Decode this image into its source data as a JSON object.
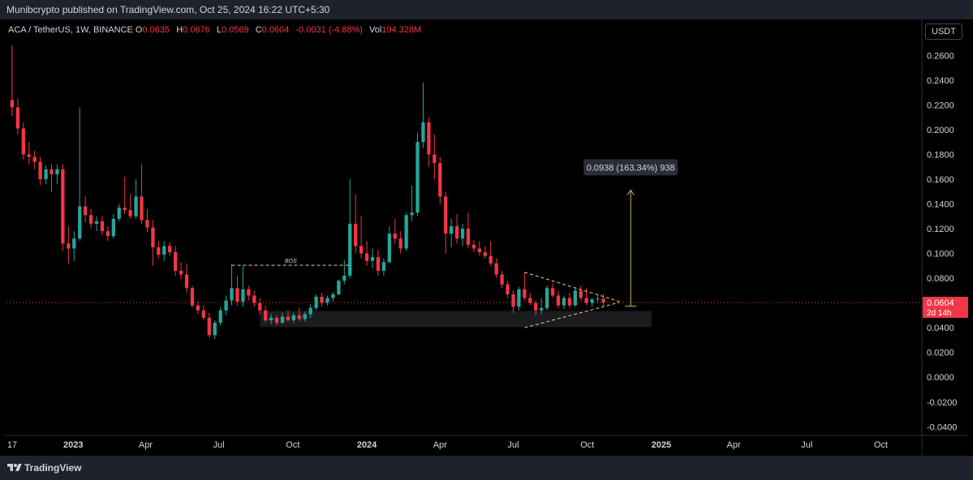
{
  "publisher": "Munibcrypto published on TradingView.com, Oct 25, 2024 16:22 UTC+5:30",
  "footer": {
    "brand": "TradingView",
    "logo_icon": "tradingview-logo-icon"
  },
  "currency_button": "USDT",
  "legend": {
    "symbol": "ACA / TetherUS, 1W, BINANCE",
    "open_label": "O",
    "open": "0.0635",
    "high_label": "H",
    "high": "0.0676",
    "low_label": "L",
    "low": "0.0569",
    "close_label": "C",
    "close": "0.0604",
    "change": "-0.0031 (-4.88%)",
    "vol_label": "Vol",
    "vol": "194.328M"
  },
  "colors": {
    "up": "#26a69a",
    "down": "#f23645",
    "accent_yellow": "#e8d36a",
    "background": "#000000"
  },
  "chart_data": {
    "type": "candlestick",
    "interval": "1W",
    "y_axis": {
      "ticks": [
        "0.2600",
        "0.2400",
        "0.2200",
        "0.2000",
        "0.1800",
        "0.1600",
        "0.1400",
        "0.1200",
        "0.1000",
        "0.0800",
        "0.0600",
        "0.0400",
        "0.0200",
        "0.0000",
        "-0.0200",
        "-0.0400"
      ],
      "range": [
        -0.047,
        0.272
      ]
    },
    "x_axis": {
      "ticks": [
        {
          "label": "17",
          "date": "2022-10-17"
        },
        {
          "label": "2023",
          "date": "2023-01-01"
        },
        {
          "label": "Apr",
          "date": "2023-04-01"
        },
        {
          "label": "Jul",
          "date": "2023-07-01"
        },
        {
          "label": "Oct",
          "date": "2023-10-01"
        },
        {
          "label": "2024",
          "date": "2024-01-01"
        },
        {
          "label": "Apr",
          "date": "2024-04-01"
        },
        {
          "label": "Jul",
          "date": "2024-07-01"
        },
        {
          "label": "Oct",
          "date": "2024-10-01"
        },
        {
          "label": "2025",
          "date": "2025-01-01"
        },
        {
          "label": "Apr",
          "date": "2025-04-01"
        },
        {
          "label": "Jul",
          "date": "2025-07-01"
        },
        {
          "label": "Oct",
          "date": "2025-10-01"
        }
      ],
      "range": [
        "2022-10-10",
        "2025-11-20"
      ]
    },
    "candles": [
      {
        "date": "2022-10-17",
        "o": 0.224,
        "h": 0.268,
        "l": 0.211,
        "c": 0.218
      },
      {
        "date": "2022-10-24",
        "o": 0.218,
        "h": 0.225,
        "l": 0.196,
        "c": 0.201
      },
      {
        "date": "2022-10-31",
        "o": 0.201,
        "h": 0.206,
        "l": 0.176,
        "c": 0.18
      },
      {
        "date": "2022-11-07",
        "o": 0.18,
        "h": 0.19,
        "l": 0.172,
        "c": 0.178
      },
      {
        "date": "2022-11-14",
        "o": 0.178,
        "h": 0.183,
        "l": 0.168,
        "c": 0.174
      },
      {
        "date": "2022-11-21",
        "o": 0.174,
        "h": 0.178,
        "l": 0.155,
        "c": 0.16
      },
      {
        "date": "2022-11-28",
        "o": 0.16,
        "h": 0.171,
        "l": 0.156,
        "c": 0.168
      },
      {
        "date": "2022-12-05",
        "o": 0.168,
        "h": 0.172,
        "l": 0.15,
        "c": 0.164
      },
      {
        "date": "2022-12-12",
        "o": 0.164,
        "h": 0.172,
        "l": 0.156,
        "c": 0.168
      },
      {
        "date": "2022-12-19",
        "o": 0.168,
        "h": 0.172,
        "l": 0.102,
        "c": 0.108
      },
      {
        "date": "2022-12-26",
        "o": 0.108,
        "h": 0.122,
        "l": 0.092,
        "c": 0.104
      },
      {
        "date": "2023-01-02",
        "o": 0.104,
        "h": 0.118,
        "l": 0.094,
        "c": 0.112
      },
      {
        "date": "2023-01-09",
        "o": 0.112,
        "h": 0.218,
        "l": 0.11,
        "c": 0.138
      },
      {
        "date": "2023-01-16",
        "o": 0.138,
        "h": 0.146,
        "l": 0.125,
        "c": 0.131
      },
      {
        "date": "2023-01-23",
        "o": 0.131,
        "h": 0.136,
        "l": 0.12,
        "c": 0.124
      },
      {
        "date": "2023-01-30",
        "o": 0.124,
        "h": 0.13,
        "l": 0.118,
        "c": 0.126
      },
      {
        "date": "2023-02-06",
        "o": 0.126,
        "h": 0.13,
        "l": 0.115,
        "c": 0.118
      },
      {
        "date": "2023-02-13",
        "o": 0.118,
        "h": 0.122,
        "l": 0.11,
        "c": 0.114
      },
      {
        "date": "2023-02-20",
        "o": 0.114,
        "h": 0.132,
        "l": 0.112,
        "c": 0.128
      },
      {
        "date": "2023-02-27",
        "o": 0.128,
        "h": 0.14,
        "l": 0.126,
        "c": 0.137
      },
      {
        "date": "2023-03-06",
        "o": 0.137,
        "h": 0.162,
        "l": 0.132,
        "c": 0.135
      },
      {
        "date": "2023-03-13",
        "o": 0.135,
        "h": 0.148,
        "l": 0.128,
        "c": 0.13
      },
      {
        "date": "2023-03-20",
        "o": 0.13,
        "h": 0.16,
        "l": 0.128,
        "c": 0.146
      },
      {
        "date": "2023-03-27",
        "o": 0.146,
        "h": 0.172,
        "l": 0.124,
        "c": 0.127
      },
      {
        "date": "2023-04-03",
        "o": 0.127,
        "h": 0.136,
        "l": 0.117,
        "c": 0.121
      },
      {
        "date": "2023-04-10",
        "o": 0.121,
        "h": 0.127,
        "l": 0.09,
        "c": 0.105
      },
      {
        "date": "2023-04-17",
        "o": 0.105,
        "h": 0.11,
        "l": 0.096,
        "c": 0.099
      },
      {
        "date": "2023-04-24",
        "o": 0.099,
        "h": 0.11,
        "l": 0.094,
        "c": 0.106
      },
      {
        "date": "2023-05-01",
        "o": 0.106,
        "h": 0.109,
        "l": 0.098,
        "c": 0.101
      },
      {
        "date": "2023-05-08",
        "o": 0.101,
        "h": 0.106,
        "l": 0.082,
        "c": 0.086
      },
      {
        "date": "2023-05-15",
        "o": 0.086,
        "h": 0.093,
        "l": 0.079,
        "c": 0.083
      },
      {
        "date": "2023-05-22",
        "o": 0.083,
        "h": 0.092,
        "l": 0.068,
        "c": 0.072
      },
      {
        "date": "2023-05-29",
        "o": 0.072,
        "h": 0.074,
        "l": 0.056,
        "c": 0.058
      },
      {
        "date": "2023-06-05",
        "o": 0.058,
        "h": 0.061,
        "l": 0.051,
        "c": 0.054
      },
      {
        "date": "2023-06-12",
        "o": 0.054,
        "h": 0.058,
        "l": 0.046,
        "c": 0.048
      },
      {
        "date": "2023-06-19",
        "o": 0.048,
        "h": 0.052,
        "l": 0.032,
        "c": 0.034
      },
      {
        "date": "2023-06-26",
        "o": 0.034,
        "h": 0.046,
        "l": 0.031,
        "c": 0.044
      },
      {
        "date": "2023-07-03",
        "o": 0.044,
        "h": 0.057,
        "l": 0.042,
        "c": 0.054
      },
      {
        "date": "2023-07-10",
        "o": 0.054,
        "h": 0.066,
        "l": 0.05,
        "c": 0.062
      },
      {
        "date": "2023-07-17",
        "o": 0.062,
        "h": 0.091,
        "l": 0.058,
        "c": 0.072
      },
      {
        "date": "2023-07-24",
        "o": 0.072,
        "h": 0.082,
        "l": 0.058,
        "c": 0.061
      },
      {
        "date": "2023-07-31",
        "o": 0.061,
        "h": 0.09,
        "l": 0.057,
        "c": 0.071
      },
      {
        "date": "2023-08-07",
        "o": 0.071,
        "h": 0.074,
        "l": 0.062,
        "c": 0.066
      },
      {
        "date": "2023-08-14",
        "o": 0.066,
        "h": 0.07,
        "l": 0.057,
        "c": 0.06
      },
      {
        "date": "2023-08-21",
        "o": 0.06,
        "h": 0.064,
        "l": 0.051,
        "c": 0.054
      },
      {
        "date": "2023-08-28",
        "o": 0.054,
        "h": 0.058,
        "l": 0.044,
        "c": 0.046
      },
      {
        "date": "2023-09-04",
        "o": 0.046,
        "h": 0.051,
        "l": 0.043,
        "c": 0.048
      },
      {
        "date": "2023-09-11",
        "o": 0.048,
        "h": 0.05,
        "l": 0.042,
        "c": 0.044
      },
      {
        "date": "2023-09-18",
        "o": 0.044,
        "h": 0.052,
        "l": 0.043,
        "c": 0.049
      },
      {
        "date": "2023-09-25",
        "o": 0.049,
        "h": 0.054,
        "l": 0.045,
        "c": 0.046
      },
      {
        "date": "2023-10-02",
        "o": 0.046,
        "h": 0.052,
        "l": 0.044,
        "c": 0.05
      },
      {
        "date": "2023-10-09",
        "o": 0.05,
        "h": 0.056,
        "l": 0.045,
        "c": 0.047
      },
      {
        "date": "2023-10-16",
        "o": 0.047,
        "h": 0.053,
        "l": 0.045,
        "c": 0.051
      },
      {
        "date": "2023-10-23",
        "o": 0.051,
        "h": 0.059,
        "l": 0.048,
        "c": 0.056
      },
      {
        "date": "2023-10-30",
        "o": 0.056,
        "h": 0.067,
        "l": 0.054,
        "c": 0.065
      },
      {
        "date": "2023-11-06",
        "o": 0.065,
        "h": 0.068,
        "l": 0.057,
        "c": 0.06
      },
      {
        "date": "2023-11-13",
        "o": 0.06,
        "h": 0.066,
        "l": 0.058,
        "c": 0.064
      },
      {
        "date": "2023-11-20",
        "o": 0.064,
        "h": 0.069,
        "l": 0.061,
        "c": 0.067
      },
      {
        "date": "2023-11-27",
        "o": 0.067,
        "h": 0.079,
        "l": 0.066,
        "c": 0.078
      },
      {
        "date": "2023-12-04",
        "o": 0.078,
        "h": 0.095,
        "l": 0.075,
        "c": 0.082
      },
      {
        "date": "2023-12-11",
        "o": 0.082,
        "h": 0.16,
        "l": 0.08,
        "c": 0.124
      },
      {
        "date": "2023-12-18",
        "o": 0.124,
        "h": 0.148,
        "l": 0.1,
        "c": 0.106
      },
      {
        "date": "2023-12-25",
        "o": 0.106,
        "h": 0.13,
        "l": 0.096,
        "c": 0.1
      },
      {
        "date": "2024-01-01",
        "o": 0.1,
        "h": 0.11,
        "l": 0.09,
        "c": 0.094
      },
      {
        "date": "2024-01-08",
        "o": 0.094,
        "h": 0.104,
        "l": 0.088,
        "c": 0.097
      },
      {
        "date": "2024-01-15",
        "o": 0.097,
        "h": 0.103,
        "l": 0.082,
        "c": 0.086
      },
      {
        "date": "2024-01-22",
        "o": 0.086,
        "h": 0.096,
        "l": 0.082,
        "c": 0.093
      },
      {
        "date": "2024-01-29",
        "o": 0.093,
        "h": 0.122,
        "l": 0.092,
        "c": 0.116
      },
      {
        "date": "2024-02-05",
        "o": 0.116,
        "h": 0.128,
        "l": 0.108,
        "c": 0.112
      },
      {
        "date": "2024-02-12",
        "o": 0.112,
        "h": 0.118,
        "l": 0.1,
        "c": 0.104
      },
      {
        "date": "2024-02-19",
        "o": 0.104,
        "h": 0.133,
        "l": 0.102,
        "c": 0.131
      },
      {
        "date": "2024-02-26",
        "o": 0.131,
        "h": 0.155,
        "l": 0.126,
        "c": 0.133
      },
      {
        "date": "2024-03-04",
        "o": 0.133,
        "h": 0.197,
        "l": 0.13,
        "c": 0.19
      },
      {
        "date": "2024-03-11",
        "o": 0.19,
        "h": 0.238,
        "l": 0.185,
        "c": 0.206
      },
      {
        "date": "2024-03-18",
        "o": 0.206,
        "h": 0.21,
        "l": 0.17,
        "c": 0.18
      },
      {
        "date": "2024-03-25",
        "o": 0.18,
        "h": 0.196,
        "l": 0.16,
        "c": 0.173
      },
      {
        "date": "2024-04-01",
        "o": 0.173,
        "h": 0.178,
        "l": 0.14,
        "c": 0.146
      },
      {
        "date": "2024-04-08",
        "o": 0.146,
        "h": 0.15,
        "l": 0.1,
        "c": 0.116
      },
      {
        "date": "2024-04-15",
        "o": 0.116,
        "h": 0.128,
        "l": 0.105,
        "c": 0.122
      },
      {
        "date": "2024-04-22",
        "o": 0.122,
        "h": 0.132,
        "l": 0.108,
        "c": 0.112
      },
      {
        "date": "2024-04-29",
        "o": 0.112,
        "h": 0.124,
        "l": 0.106,
        "c": 0.12
      },
      {
        "date": "2024-05-06",
        "o": 0.12,
        "h": 0.133,
        "l": 0.104,
        "c": 0.107
      },
      {
        "date": "2024-05-13",
        "o": 0.107,
        "h": 0.111,
        "l": 0.101,
        "c": 0.104
      },
      {
        "date": "2024-05-20",
        "o": 0.104,
        "h": 0.11,
        "l": 0.098,
        "c": 0.101
      },
      {
        "date": "2024-05-27",
        "o": 0.101,
        "h": 0.106,
        "l": 0.096,
        "c": 0.098
      },
      {
        "date": "2024-06-03",
        "o": 0.098,
        "h": 0.11,
        "l": 0.09,
        "c": 0.092
      },
      {
        "date": "2024-06-10",
        "o": 0.092,
        "h": 0.096,
        "l": 0.08,
        "c": 0.083
      },
      {
        "date": "2024-06-17",
        "o": 0.083,
        "h": 0.086,
        "l": 0.072,
        "c": 0.075
      },
      {
        "date": "2024-06-24",
        "o": 0.075,
        "h": 0.078,
        "l": 0.064,
        "c": 0.067
      },
      {
        "date": "2024-07-01",
        "o": 0.067,
        "h": 0.07,
        "l": 0.052,
        "c": 0.057
      },
      {
        "date": "2024-07-08",
        "o": 0.057,
        "h": 0.073,
        "l": 0.054,
        "c": 0.071
      },
      {
        "date": "2024-07-15",
        "o": 0.071,
        "h": 0.085,
        "l": 0.062,
        "c": 0.064
      },
      {
        "date": "2024-07-22",
        "o": 0.064,
        "h": 0.068,
        "l": 0.058,
        "c": 0.06
      },
      {
        "date": "2024-07-29",
        "o": 0.06,
        "h": 0.062,
        "l": 0.05,
        "c": 0.054
      },
      {
        "date": "2024-08-05",
        "o": 0.054,
        "h": 0.064,
        "l": 0.051,
        "c": 0.056
      },
      {
        "date": "2024-08-12",
        "o": 0.056,
        "h": 0.074,
        "l": 0.054,
        "c": 0.072
      },
      {
        "date": "2024-08-19",
        "o": 0.072,
        "h": 0.076,
        "l": 0.064,
        "c": 0.066
      },
      {
        "date": "2024-08-26",
        "o": 0.066,
        "h": 0.07,
        "l": 0.056,
        "c": 0.058
      },
      {
        "date": "2024-09-02",
        "o": 0.058,
        "h": 0.066,
        "l": 0.055,
        "c": 0.064
      },
      {
        "date": "2024-09-09",
        "o": 0.064,
        "h": 0.068,
        "l": 0.056,
        "c": 0.058
      },
      {
        "date": "2024-09-16",
        "o": 0.058,
        "h": 0.072,
        "l": 0.057,
        "c": 0.07
      },
      {
        "date": "2024-09-23",
        "o": 0.07,
        "h": 0.074,
        "l": 0.062,
        "c": 0.064
      },
      {
        "date": "2024-09-30",
        "o": 0.064,
        "h": 0.072,
        "l": 0.058,
        "c": 0.06
      },
      {
        "date": "2024-10-07",
        "o": 0.06,
        "h": 0.064,
        "l": 0.057,
        "c": 0.063
      },
      {
        "date": "2024-10-14",
        "o": 0.063,
        "h": 0.067,
        "l": 0.06,
        "c": 0.0635
      },
      {
        "date": "2024-10-21",
        "o": 0.0635,
        "h": 0.0676,
        "l": 0.0569,
        "c": 0.0604
      }
    ],
    "current_price": {
      "value": 0.0604,
      "label": "0.0604",
      "countdown": "2d 14h"
    },
    "annotations": {
      "bos": {
        "label": "BOS",
        "price": 0.0905,
        "from": "2023-07-17",
        "to": "2023-12-11"
      },
      "demand_zone": {
        "top": 0.0535,
        "bottom": 0.0405,
        "from": "2023-08-21",
        "to": "2024-12-20"
      },
      "triangle": {
        "upper": [
          {
            "date": "2024-07-15",
            "price": 0.0848
          },
          {
            "date": "2024-11-10",
            "price": 0.0612
          }
        ],
        "lower": [
          {
            "date": "2024-07-15",
            "price": 0.04
          },
          {
            "date": "2024-11-10",
            "price": 0.0605
          }
        ]
      },
      "measure": {
        "date": "2024-11-24",
        "from": 0.0574,
        "to": 0.1512,
        "label": "0.0938 (163.34%) 938"
      }
    }
  }
}
